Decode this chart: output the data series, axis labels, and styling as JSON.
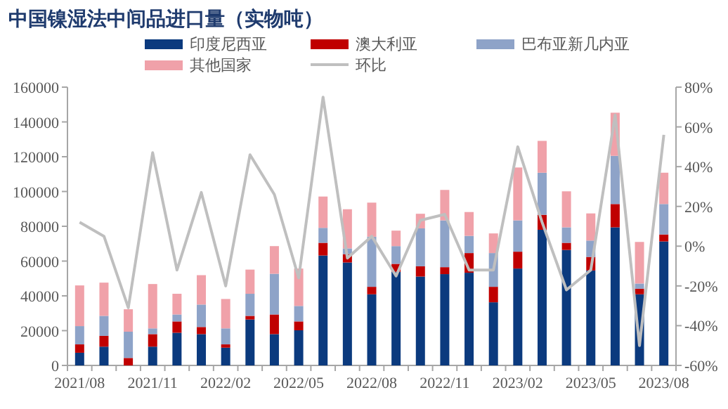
{
  "chart_data": {
    "type": "bar",
    "stacked": true,
    "title": "中国镍湿法中间品进口量（实物吨）",
    "categories": [
      "2021/08",
      null,
      null,
      "2021/11",
      null,
      null,
      "2022/02",
      null,
      null,
      "2022/05",
      null,
      null,
      "2022/08",
      null,
      null,
      "2022/11",
      null,
      null,
      "2023/02",
      null,
      null,
      "2023/05",
      null,
      null,
      "2023/08"
    ],
    "series": [
      {
        "name": "印度尼西亚",
        "color": "#0b3a7e",
        "values": [
          7300,
          10800,
          0,
          10800,
          18800,
          18000,
          10200,
          26400,
          18000,
          20200,
          63200,
          59200,
          40900,
          53800,
          51100,
          52500,
          53300,
          36300,
          55700,
          78000,
          66400,
          54600,
          79400,
          40900,
          71300
        ]
      },
      {
        "name": "澳大利亚",
        "color": "#c00000",
        "values": [
          4800,
          6200,
          4300,
          7200,
          6500,
          4100,
          1900,
          2100,
          11300,
          5100,
          7300,
          4800,
          4300,
          4600,
          5900,
          4000,
          11300,
          8900,
          9700,
          8600,
          4100,
          7800,
          13400,
          3200,
          4000
        ]
      },
      {
        "name": "巴布亚新几内亚",
        "color": "#8ea3c8",
        "values": [
          10500,
          11500,
          15100,
          3300,
          4000,
          12900,
          9200,
          12700,
          23400,
          8900,
          8600,
          3300,
          28800,
          10200,
          21800,
          26900,
          9900,
          19400,
          18000,
          24200,
          8900,
          9400,
          27700,
          3000,
          17500
        ]
      },
      {
        "name": "其他国家",
        "color": "#f0a1a9",
        "values": [
          23400,
          19100,
          12900,
          25500,
          11900,
          16900,
          16900,
          13900,
          15900,
          21500,
          18000,
          22500,
          19600,
          8900,
          8400,
          17500,
          13700,
          11300,
          30400,
          18300,
          20700,
          15600,
          24800,
          23900,
          18000
        ]
      },
      {
        "name": "环比",
        "type": "line",
        "axis": "y2",
        "color": "#bfbfbf",
        "values": [
          12,
          5,
          -31,
          47,
          -12,
          27,
          -20,
          46,
          26,
          -16,
          75,
          -6,
          5,
          -15,
          13,
          16,
          -12,
          -12,
          50,
          12,
          -22,
          -12,
          66,
          -50,
          56
        ]
      }
    ],
    "ylim": [
      0,
      160000
    ],
    "yticks": [
      0,
      20000,
      40000,
      60000,
      80000,
      100000,
      120000,
      140000,
      160000
    ],
    "y2lim": [
      -60,
      80
    ],
    "y2ticks": [
      {
        "value": -60,
        "label": "-60%"
      },
      {
        "value": -40,
        "label": "-40%"
      },
      {
        "value": -20,
        "label": "-20%"
      },
      {
        "value": 0,
        "label": "0%"
      },
      {
        "value": 20,
        "label": "20%"
      },
      {
        "value": 40,
        "label": "40%"
      },
      {
        "value": 60,
        "label": "60%"
      },
      {
        "value": 80,
        "label": "80%"
      }
    ],
    "legend": "top"
  }
}
